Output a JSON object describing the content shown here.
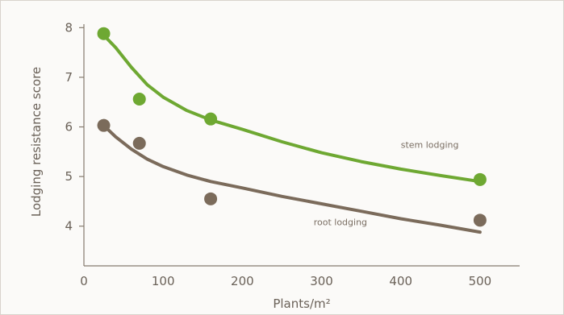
{
  "chart_data": {
    "type": "scatter",
    "xlabel": "Plants/m²",
    "ylabel": "Lodging resistance score",
    "xlim": [
      0,
      550
    ],
    "ylim": [
      3.2,
      8.2
    ],
    "xticks": [
      0,
      100,
      200,
      300,
      400,
      500
    ],
    "yticks": [
      4,
      5,
      6,
      7,
      8
    ],
    "grid": false,
    "series": [
      {
        "name": "stem lodging",
        "color": "#6ea832",
        "x": [
          25,
          70,
          160,
          500
        ],
        "y": [
          7.88,
          6.56,
          6.16,
          4.94
        ],
        "trend_x": [
          25,
          40,
          60,
          80,
          100,
          130,
          160,
          200,
          250,
          300,
          350,
          400,
          450,
          500
        ],
        "trend_y": [
          7.85,
          7.6,
          7.2,
          6.85,
          6.6,
          6.33,
          6.14,
          5.95,
          5.7,
          5.48,
          5.3,
          5.15,
          5.02,
          4.9
        ]
      },
      {
        "name": "root lodging",
        "color": "#7b6b5b",
        "x": [
          25,
          70,
          160,
          500
        ],
        "y": [
          6.03,
          5.67,
          4.55,
          4.12
        ],
        "trend_x": [
          25,
          40,
          60,
          80,
          100,
          130,
          160,
          200,
          250,
          300,
          350,
          400,
          450,
          500
        ],
        "trend_y": [
          6.03,
          5.8,
          5.55,
          5.35,
          5.2,
          5.03,
          4.9,
          4.77,
          4.6,
          4.45,
          4.3,
          4.15,
          4.02,
          3.88
        ]
      }
    ],
    "annotations": [
      {
        "text": "stem lodging",
        "x": 400,
        "y": 5.58,
        "series": 0
      },
      {
        "text": "root lodging",
        "x": 290,
        "y": 4.02,
        "series": 1
      }
    ]
  }
}
